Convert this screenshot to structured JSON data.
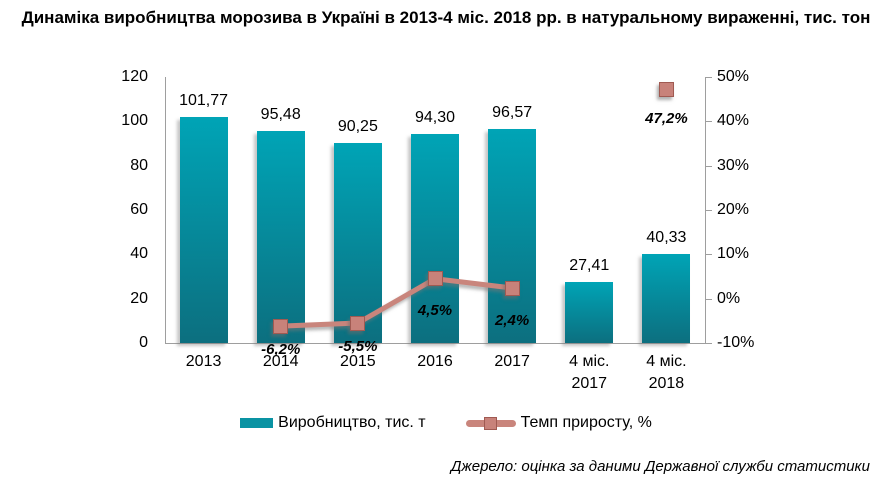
{
  "title": "Динаміка виробництва морозива в Україні в 2013-4 міс. 2018 рр. в натуральному вираженні, тис. тон",
  "source": "Джерело: оцінка за даними Державної служби статистики",
  "legend": [
    {
      "type": "bar",
      "label": "Виробництво, тис. т"
    },
    {
      "type": "line",
      "label": "Темп приросту, %"
    }
  ],
  "colors": {
    "bar_top": "#00a4b6",
    "bar_bottom": "#0c6f7f",
    "bar_legend": "#0a93a3",
    "line": "#c9857c",
    "marker_fill": "#c8827a",
    "marker_border": "#a05a52",
    "axis": "#9e9e9e",
    "text": "#000000"
  },
  "chart_data": {
    "type": "bar",
    "subtype": "combo bar + line, dual axis",
    "categories": [
      "2013",
      "2014",
      "2015",
      "2016",
      "2017",
      "4 міс.\n2017",
      "4 міс.\n2018"
    ],
    "series": [
      {
        "name": "Виробництво, тис. т",
        "type": "bar",
        "axis": "left",
        "values": [
          101.77,
          95.48,
          90.25,
          94.3,
          96.57,
          27.41,
          40.33
        ],
        "labels": [
          "101,77",
          "95,48",
          "90,25",
          "94,30",
          "96,57",
          "27,41",
          "40,33"
        ]
      },
      {
        "name": "Темп приросту, %",
        "type": "line",
        "axis": "right",
        "values": [
          null,
          -6.2,
          -5.5,
          4.5,
          2.4,
          null,
          47.2
        ],
        "labels": [
          null,
          "-6,2%",
          "-5,5%",
          "4,5%",
          "2,4%",
          null,
          "47,2%"
        ]
      }
    ],
    "left_axis": {
      "min": 0,
      "max": 120,
      "step": 20,
      "ticks": [
        "120",
        "100",
        "80",
        "60",
        "40",
        "20",
        "0"
      ]
    },
    "right_axis": {
      "min": -10,
      "max": 50,
      "step": 10,
      "ticks": [
        "50%",
        "40%",
        "30%",
        "20%",
        "10%",
        "0%",
        "-10%"
      ]
    },
    "grid": false,
    "legend_position": "bottom"
  }
}
